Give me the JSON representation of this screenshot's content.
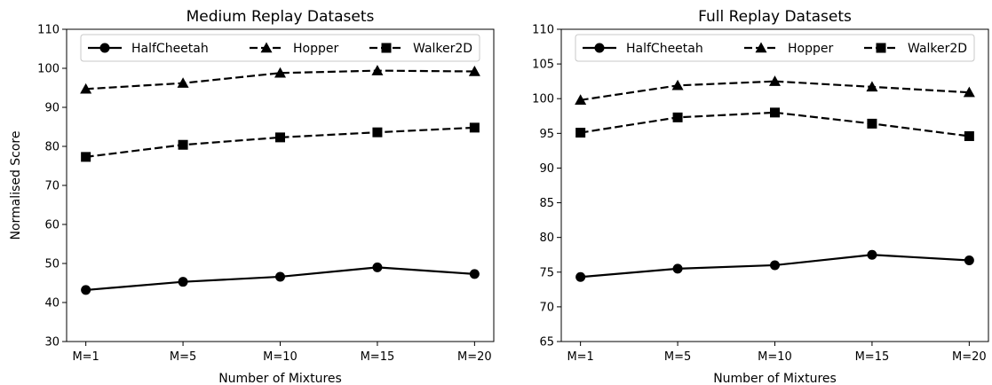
{
  "chart_data": [
    {
      "type": "line",
      "title": "Medium Replay Datasets",
      "xlabel": "Number of Mixtures",
      "ylabel": "Normalised Score",
      "categories": [
        "M=1",
        "M=5",
        "M=10",
        "M=15",
        "M=20"
      ],
      "ylim": [
        30,
        110
      ],
      "yticks": [
        30,
        40,
        50,
        60,
        70,
        80,
        90,
        100,
        110
      ],
      "legend": "top",
      "grid": false,
      "series": [
        {
          "name": "HalfCheetah",
          "marker": "circle",
          "linestyle": "solid",
          "values": [
            43.2,
            45.3,
            46.6,
            49.0,
            47.3
          ]
        },
        {
          "name": "Hopper",
          "marker": "triangle",
          "linestyle": "dashed",
          "values": [
            94.7,
            96.2,
            98.8,
            99.4,
            99.2
          ]
        },
        {
          "name": "Walker2D",
          "marker": "square",
          "linestyle": "dashed",
          "values": [
            77.3,
            80.4,
            82.3,
            83.6,
            84.8
          ]
        }
      ]
    },
    {
      "type": "line",
      "title": "Full Replay Datasets",
      "xlabel": "Number of Mixtures",
      "ylabel": "",
      "categories": [
        "M=1",
        "M=5",
        "M=10",
        "M=15",
        "M=20"
      ],
      "ylim": [
        65,
        110
      ],
      "yticks": [
        65,
        70,
        75,
        80,
        85,
        90,
        95,
        100,
        105,
        110
      ],
      "legend": "top",
      "grid": false,
      "series": [
        {
          "name": "HalfCheetah",
          "marker": "circle",
          "linestyle": "solid",
          "values": [
            74.3,
            75.5,
            76.0,
            77.5,
            76.7
          ]
        },
        {
          "name": "Hopper",
          "marker": "triangle",
          "linestyle": "dashed",
          "values": [
            99.8,
            101.9,
            102.5,
            101.7,
            100.9
          ]
        },
        {
          "name": "Walker2D",
          "marker": "square",
          "linestyle": "dashed",
          "values": [
            95.1,
            97.3,
            98.0,
            96.4,
            94.6
          ]
        }
      ]
    }
  ]
}
